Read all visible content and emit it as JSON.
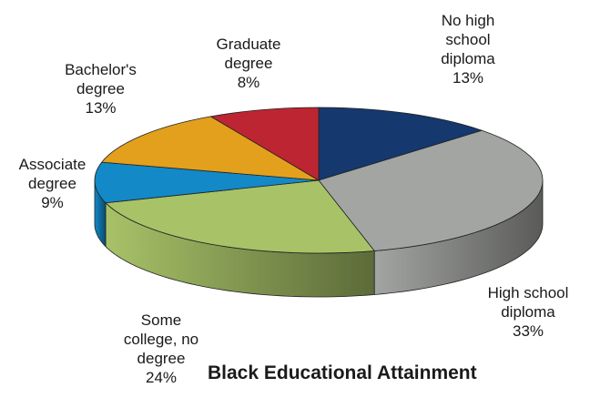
{
  "chart_data": {
    "type": "pie",
    "title": "Black Educational Attainment",
    "slices": [
      {
        "label": "No high school diploma",
        "display": "No high\nschool\ndiploma\n13%",
        "value": 13,
        "color": "#15386e"
      },
      {
        "label": "High school diploma",
        "display": "High school\ndiploma\n33%",
        "value": 33,
        "color": "#a3a5a2"
      },
      {
        "label": "Some college, no degree",
        "display": "Some\ncollege, no\ndegree\n24%",
        "value": 24,
        "color": "#a8c268"
      },
      {
        "label": "Associate degree",
        "display": "Associate\ndegree\n9%",
        "value": 9,
        "color": "#1389c8"
      },
      {
        "label": "Bachelor's degree",
        "display": "Bachelor's\ndegree\n13%",
        "value": 13,
        "color": "#e2a01c"
      },
      {
        "label": "Graduate degree",
        "display": "Graduate\ndegree\n8%",
        "value": 8,
        "color": "#be2532"
      }
    ],
    "legend": "none",
    "style": "3d-pie"
  }
}
